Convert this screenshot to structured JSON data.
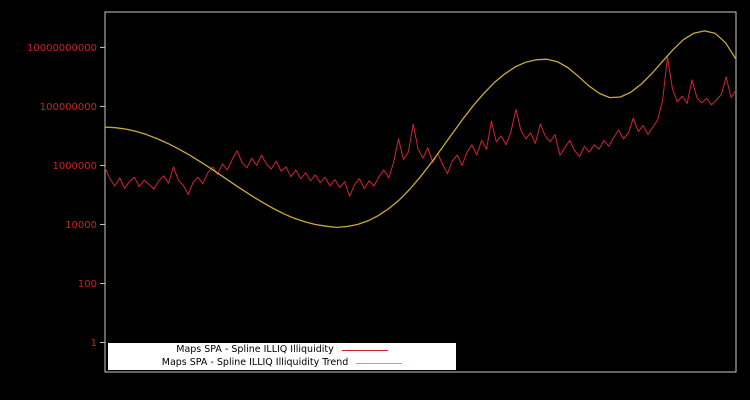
{
  "chart_data": {
    "type": "line",
    "title": "",
    "yscale": "log10",
    "ylog10_range": [
      -1,
      11.2
    ],
    "grid": false,
    "legend_position": "bottom-left-inside",
    "plot_style": {
      "background": "#000000",
      "border_color": "#c8c8c8",
      "tick_label_color": "#cc2222"
    },
    "x_axis": {
      "labels_visible": false,
      "range": [
        0,
        1
      ]
    },
    "yticks": [
      {
        "label": "1",
        "log10": 0
      },
      {
        "label": "100",
        "log10": 2
      },
      {
        "label": "10000",
        "log10": 4
      },
      {
        "label": "1000000",
        "log10": 6
      },
      {
        "label": "100000000",
        "log10": 8
      },
      {
        "label": "10000000000",
        "log10": 10
      }
    ],
    "series": [
      {
        "name": "Maps SPA - Spline ILLIQ Illiquidity",
        "color": "#cf2433",
        "stroke_width": 1,
        "log10_values": [
          5.92,
          5.55,
          5.3,
          5.58,
          5.22,
          5.45,
          5.6,
          5.28,
          5.5,
          5.35,
          5.2,
          5.48,
          5.65,
          5.4,
          5.95,
          5.5,
          5.32,
          5.02,
          5.42,
          5.6,
          5.38,
          5.75,
          5.95,
          5.7,
          6.05,
          5.85,
          6.2,
          6.5,
          6.1,
          5.92,
          6.25,
          6.0,
          6.35,
          6.05,
          5.88,
          6.15,
          5.8,
          5.95,
          5.62,
          5.85,
          5.55,
          5.75,
          5.48,
          5.68,
          5.42,
          5.6,
          5.3,
          5.52,
          5.25,
          5.45,
          4.95,
          5.35,
          5.55,
          5.22,
          5.48,
          5.3,
          5.62,
          5.85,
          5.58,
          6.1,
          6.9,
          6.2,
          6.45,
          7.4,
          6.55,
          6.25,
          6.6,
          6.1,
          6.4,
          6.05,
          5.72,
          6.15,
          6.35,
          6.0,
          6.45,
          6.7,
          6.35,
          6.85,
          6.55,
          7.5,
          6.8,
          7.0,
          6.7,
          7.15,
          7.9,
          7.2,
          6.9,
          7.1,
          6.75,
          7.4,
          7.0,
          6.8,
          7.05,
          6.35,
          6.6,
          6.85,
          6.5,
          6.3,
          6.65,
          6.45,
          6.7,
          6.55,
          6.85,
          6.65,
          6.95,
          7.2,
          6.9,
          7.1,
          7.6,
          7.15,
          7.35,
          7.05,
          7.3,
          7.55,
          8.2,
          9.68,
          8.6,
          8.15,
          8.35,
          8.1,
          8.9,
          8.3,
          8.12,
          8.28,
          8.05,
          8.22,
          8.4,
          9.0,
          8.3,
          8.55
        ]
      },
      {
        "name": "Maps SPA - Spline ILLIQ Illiquidity Trend",
        "color": "#c8aa3c",
        "stroke_width": 1.3,
        "log10_values": [
          7.3,
          7.28,
          7.23,
          7.15,
          7.04,
          6.9,
          6.74,
          6.56,
          6.36,
          6.14,
          5.91,
          5.67,
          5.43,
          5.19,
          4.96,
          4.74,
          4.54,
          4.36,
          4.21,
          4.09,
          4.0,
          3.94,
          3.9,
          3.93,
          4.0,
          4.12,
          4.3,
          4.54,
          4.84,
          5.2,
          5.62,
          6.08,
          6.57,
          7.07,
          7.56,
          8.02,
          8.43,
          8.8,
          9.1,
          9.34,
          9.5,
          9.58,
          9.6,
          9.52,
          9.32,
          9.02,
          8.7,
          8.44,
          8.3,
          8.32,
          8.48,
          8.76,
          9.12,
          9.52,
          9.92,
          10.26,
          10.48,
          10.56,
          10.48,
          10.16,
          9.6
        ]
      }
    ]
  },
  "legend": {
    "items": [
      {
        "label": "Maps SPA - Spline ILLIQ Illiquidity",
        "color": "#cf2433"
      },
      {
        "label": "Maps SPA - Spline ILLIQ Illiquidity Trend",
        "color": "#c8aa3c"
      }
    ]
  }
}
